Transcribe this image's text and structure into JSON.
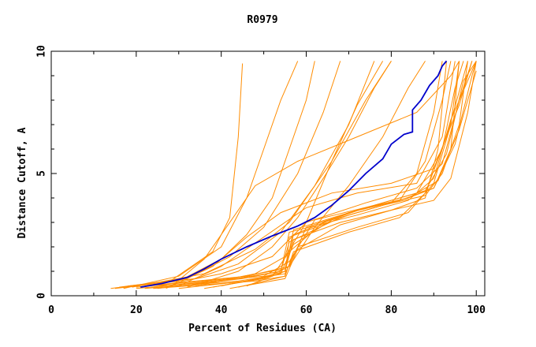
{
  "chart_data": {
    "type": "line",
    "title": "R0979",
    "xlabel": "Percent of Residues (CA)",
    "ylabel": "Distance Cutoff, A",
    "xlim": [
      0,
      102
    ],
    "ylim": [
      0,
      10
    ],
    "x_ticks": [
      0,
      20,
      40,
      60,
      80,
      100
    ],
    "y_ticks": [
      0,
      5,
      10
    ],
    "grid": false,
    "legend": "none",
    "colors": {
      "models": "#ff8c00",
      "highlight": "#0000cc"
    },
    "highlight_series": {
      "color": "#0000cc",
      "points": [
        [
          21,
          0.35
        ],
        [
          26,
          0.5
        ],
        [
          32,
          0.75
        ],
        [
          36,
          1.1
        ],
        [
          40,
          1.5
        ],
        [
          46,
          2.0
        ],
        [
          52,
          2.45
        ],
        [
          58,
          2.85
        ],
        [
          62,
          3.2
        ],
        [
          66,
          3.7
        ],
        [
          70,
          4.3
        ],
        [
          74,
          5.0
        ],
        [
          78,
          5.6
        ],
        [
          80,
          6.2
        ],
        [
          83,
          6.6
        ],
        [
          85,
          6.7
        ],
        [
          85,
          7.6
        ],
        [
          87,
          8.0
        ],
        [
          89,
          8.6
        ],
        [
          91,
          9.0
        ],
        [
          92,
          9.4
        ],
        [
          93,
          9.6
        ]
      ]
    },
    "model_series": {
      "color": "#ff8c00",
      "series": [
        [
          [
            14,
            0.3
          ],
          [
            28,
            0.6
          ],
          [
            38,
            1.8
          ],
          [
            42,
            3.2
          ],
          [
            44,
            6.5
          ],
          [
            45,
            9.5
          ]
        ],
        [
          [
            15,
            0.3
          ],
          [
            30,
            0.6
          ],
          [
            40,
            1.5
          ],
          [
            46,
            2.5
          ],
          [
            52,
            4.0
          ],
          [
            56,
            6.0
          ],
          [
            60,
            8.0
          ],
          [
            62,
            9.6
          ]
        ],
        [
          [
            16,
            0.35
          ],
          [
            32,
            0.7
          ],
          [
            42,
            1.6
          ],
          [
            50,
            2.8
          ],
          [
            58,
            5.0
          ],
          [
            64,
            7.5
          ],
          [
            68,
            9.6
          ]
        ],
        [
          [
            17,
            0.3
          ],
          [
            30,
            0.8
          ],
          [
            40,
            2.0
          ],
          [
            46,
            4.0
          ],
          [
            50,
            6.0
          ],
          [
            54,
            8.0
          ],
          [
            58,
            9.6
          ]
        ],
        [
          [
            18,
            0.4
          ],
          [
            34,
            0.7
          ],
          [
            44,
            1.3
          ],
          [
            54,
            2.6
          ],
          [
            62,
            4.5
          ],
          [
            70,
            7.0
          ],
          [
            76,
            9.6
          ]
        ],
        [
          [
            19,
            0.35
          ],
          [
            36,
            0.9
          ],
          [
            48,
            1.9
          ],
          [
            56,
            3.0
          ],
          [
            66,
            5.5
          ],
          [
            74,
            8.0
          ],
          [
            80,
            9.6
          ]
        ],
        [
          [
            20,
            0.3
          ],
          [
            40,
            0.6
          ],
          [
            54,
            1.0
          ],
          [
            56,
            2.2
          ],
          [
            68,
            3.2
          ],
          [
            80,
            3.8
          ],
          [
            86,
            5.0
          ],
          [
            90,
            7.5
          ],
          [
            92,
            9.6
          ]
        ],
        [
          [
            20,
            0.35
          ],
          [
            42,
            0.7
          ],
          [
            55,
            1.1
          ],
          [
            57,
            2.5
          ],
          [
            70,
            3.4
          ],
          [
            82,
            3.9
          ],
          [
            88,
            5.5
          ],
          [
            92,
            8.0
          ],
          [
            94,
            9.6
          ]
        ],
        [
          [
            22,
            0.3
          ],
          [
            44,
            0.6
          ],
          [
            55,
            0.9
          ],
          [
            58,
            2.0
          ],
          [
            72,
            2.8
          ],
          [
            84,
            3.4
          ],
          [
            90,
            4.6
          ],
          [
            94,
            7.0
          ],
          [
            96,
            9.6
          ]
        ],
        [
          [
            22,
            0.4
          ],
          [
            46,
            0.8
          ],
          [
            56,
            1.2
          ],
          [
            60,
            2.8
          ],
          [
            74,
            3.6
          ],
          [
            86,
            4.2
          ],
          [
            92,
            6.0
          ],
          [
            95,
            8.5
          ],
          [
            97,
            9.6
          ]
        ],
        [
          [
            24,
            0.3
          ],
          [
            48,
            0.6
          ],
          [
            55,
            0.8
          ],
          [
            57,
            1.8
          ],
          [
            70,
            2.6
          ],
          [
            82,
            3.2
          ],
          [
            88,
            4.2
          ],
          [
            93,
            6.5
          ],
          [
            98,
            9.6
          ]
        ],
        [
          [
            24,
            0.35
          ],
          [
            40,
            0.9
          ],
          [
            52,
            1.6
          ],
          [
            60,
            3.0
          ],
          [
            74,
            3.8
          ],
          [
            86,
            4.4
          ],
          [
            92,
            5.4
          ],
          [
            96,
            8.0
          ],
          [
            99,
            9.6
          ]
        ],
        [
          [
            25,
            0.3
          ],
          [
            45,
            0.7
          ],
          [
            54,
            1.0
          ],
          [
            56,
            2.6
          ],
          [
            72,
            3.3
          ],
          [
            84,
            3.9
          ],
          [
            90,
            4.8
          ],
          [
            94,
            7.2
          ],
          [
            100,
            9.6
          ]
        ],
        [
          [
            26,
            0.4
          ],
          [
            50,
            0.8
          ],
          [
            56,
            1.4
          ],
          [
            62,
            3.1
          ],
          [
            76,
            3.7
          ],
          [
            88,
            4.3
          ],
          [
            93,
            5.8
          ],
          [
            97,
            8.8
          ],
          [
            100,
            9.6
          ]
        ],
        [
          [
            27,
            0.3
          ],
          [
            38,
            1.2
          ],
          [
            46,
            2.4
          ],
          [
            54,
            3.4
          ],
          [
            66,
            4.2
          ],
          [
            80,
            4.6
          ],
          [
            90,
            5.2
          ],
          [
            96,
            7.8
          ],
          [
            99,
            9.6
          ]
        ],
        [
          [
            28,
            0.35
          ],
          [
            36,
            1.5
          ],
          [
            42,
            3.0
          ],
          [
            48,
            4.5
          ],
          [
            58,
            5.5
          ],
          [
            72,
            6.5
          ],
          [
            86,
            7.5
          ],
          [
            94,
            9.0
          ],
          [
            96,
            9.6
          ]
        ],
        [
          [
            30,
            0.4
          ],
          [
            40,
            1.2
          ],
          [
            50,
            2.4
          ],
          [
            60,
            3.6
          ],
          [
            72,
            4.2
          ],
          [
            86,
            4.6
          ],
          [
            92,
            6.5
          ],
          [
            95,
            9.6
          ]
        ],
        [
          [
            30,
            0.3
          ],
          [
            46,
            0.6
          ],
          [
            55,
            1.0
          ],
          [
            57,
            2.3
          ],
          [
            68,
            3.0
          ],
          [
            80,
            3.5
          ],
          [
            88,
            4.0
          ],
          [
            91,
            6.0
          ],
          [
            93,
            9.6
          ]
        ],
        [
          [
            32,
            0.35
          ],
          [
            44,
            1.0
          ],
          [
            52,
            2.0
          ],
          [
            58,
            3.2
          ],
          [
            64,
            4.8
          ],
          [
            70,
            6.5
          ],
          [
            76,
            8.5
          ],
          [
            80,
            9.6
          ]
        ],
        [
          [
            34,
            0.4
          ],
          [
            48,
            0.9
          ],
          [
            55,
            1.6
          ],
          [
            60,
            3.0
          ],
          [
            66,
            5.5
          ],
          [
            72,
            7.8
          ],
          [
            78,
            9.6
          ]
        ],
        [
          [
            36,
            0.3
          ],
          [
            50,
            0.7
          ],
          [
            56,
            1.2
          ],
          [
            62,
            2.8
          ],
          [
            70,
            4.5
          ],
          [
            78,
            6.5
          ],
          [
            84,
            8.5
          ],
          [
            88,
            9.6
          ]
        ],
        [
          [
            38,
            0.35
          ],
          [
            52,
            0.8
          ],
          [
            56,
            1.8
          ],
          [
            64,
            3.0
          ],
          [
            74,
            3.6
          ],
          [
            84,
            4.0
          ],
          [
            90,
            4.4
          ],
          [
            94,
            6.0
          ],
          [
            96,
            9.6
          ]
        ],
        [
          [
            40,
            0.4
          ],
          [
            54,
            0.9
          ],
          [
            57,
            2.1
          ],
          [
            66,
            3.1
          ],
          [
            78,
            3.7
          ],
          [
            88,
            4.1
          ],
          [
            92,
            5.0
          ],
          [
            96,
            7.0
          ],
          [
            98,
            9.6
          ]
        ],
        [
          [
            42,
            0.3
          ],
          [
            55,
            0.7
          ],
          [
            58,
            1.9
          ],
          [
            68,
            2.9
          ],
          [
            80,
            3.5
          ],
          [
            90,
            3.9
          ],
          [
            94,
            4.8
          ],
          [
            98,
            7.5
          ],
          [
            100,
            9.6
          ]
        ],
        [
          [
            44,
            0.35
          ],
          [
            55,
            0.8
          ],
          [
            56,
            2.4
          ],
          [
            70,
            3.3
          ],
          [
            82,
            3.9
          ],
          [
            90,
            4.4
          ],
          [
            95,
            6.2
          ],
          [
            99,
            9.0
          ],
          [
            100,
            9.6
          ]
        ],
        [
          [
            46,
            0.4
          ],
          [
            55,
            1.0
          ],
          [
            57,
            2.7
          ],
          [
            72,
            3.5
          ],
          [
            84,
            4.0
          ],
          [
            91,
            4.7
          ],
          [
            96,
            6.8
          ],
          [
            100,
            9.2
          ]
        ]
      ]
    }
  }
}
